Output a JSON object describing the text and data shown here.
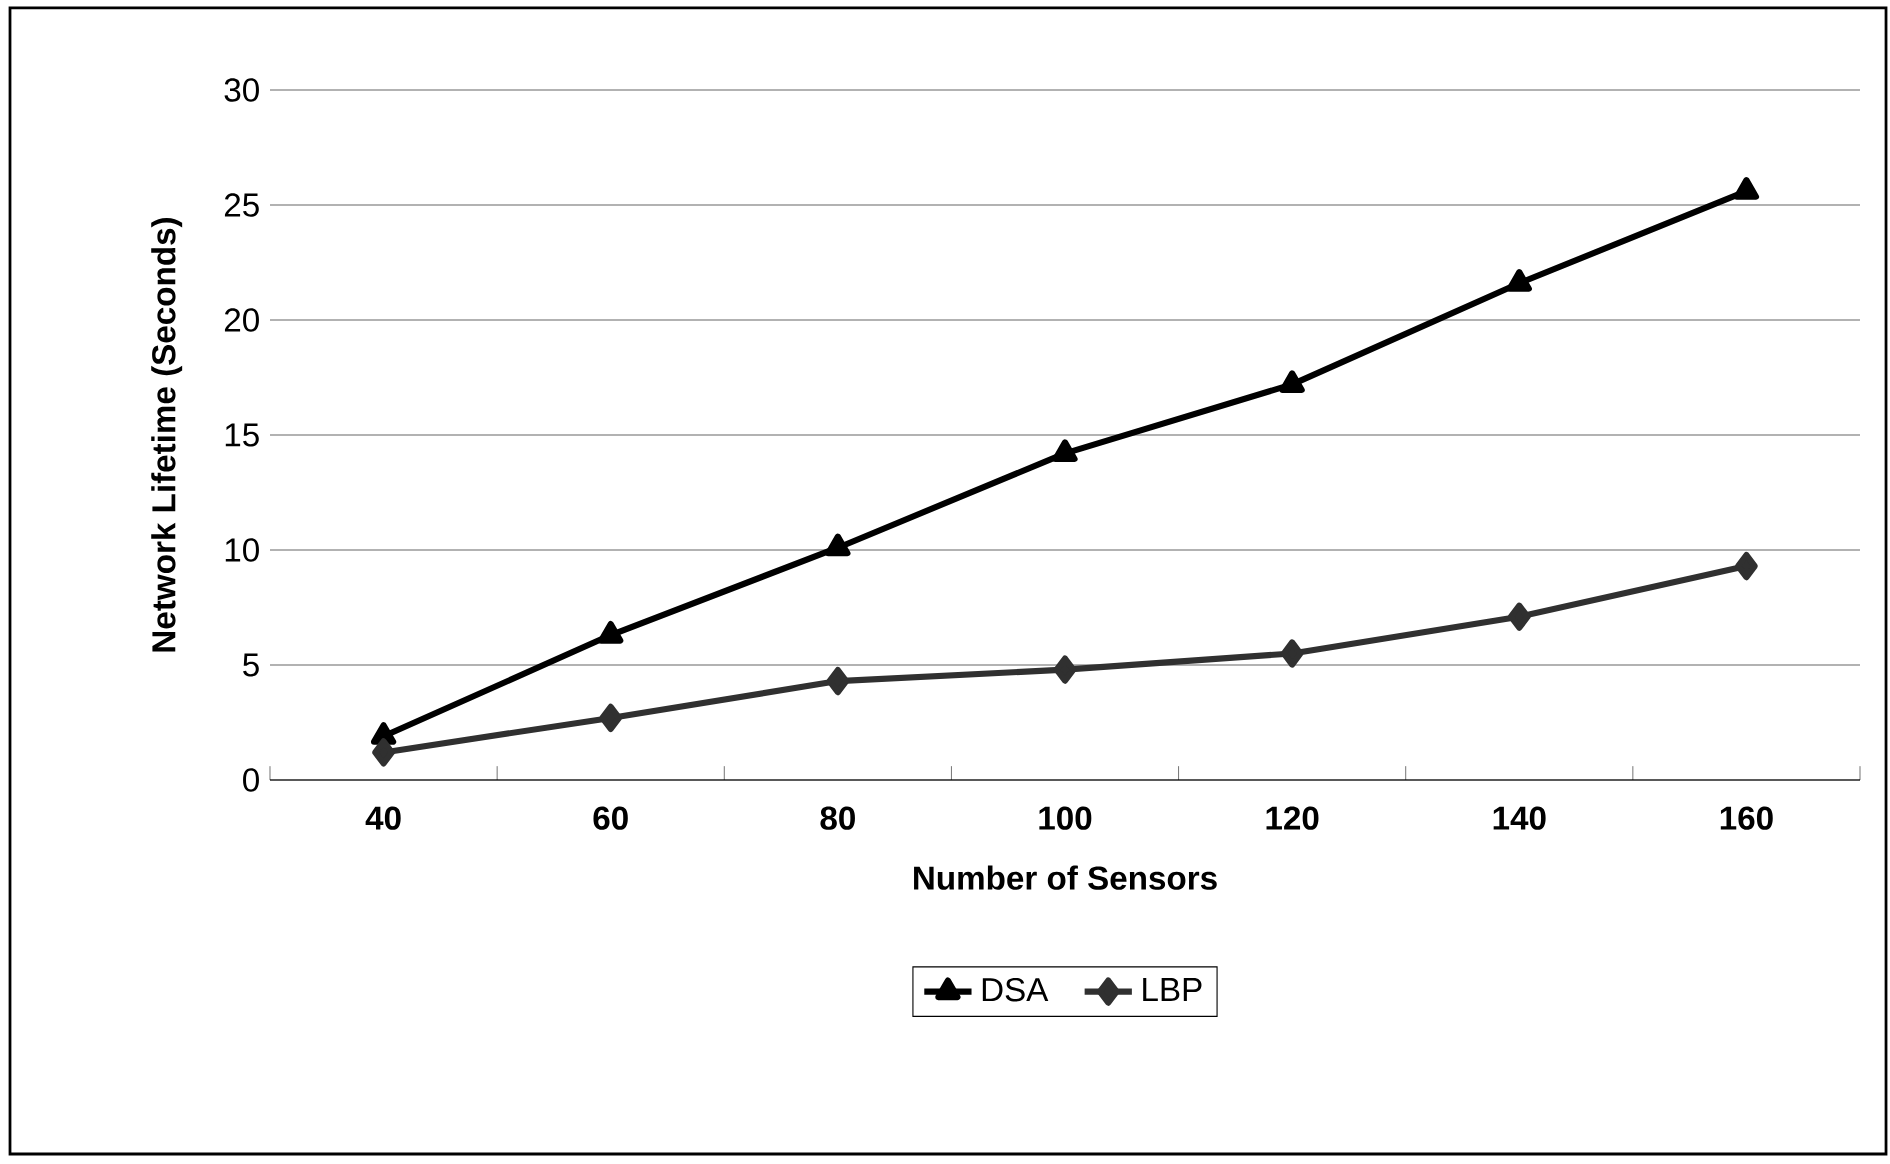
{
  "chart_data": {
    "type": "line",
    "xlabel": "Number of Sensors",
    "ylabel": "Network Lifetime (Seconds)",
    "categories": [
      "40",
      "60",
      "80",
      "100",
      "120",
      "140",
      "160"
    ],
    "series": [
      {
        "name": "DSA",
        "color": "#000000",
        "marker": "triangle",
        "values": [
          1.9,
          6.3,
          10.1,
          14.2,
          17.2,
          21.6,
          25.6
        ]
      },
      {
        "name": "LBP",
        "color": "#303030",
        "marker": "diamond",
        "values": [
          1.2,
          2.7,
          4.3,
          4.8,
          5.5,
          7.1,
          9.3
        ]
      }
    ],
    "ylim": [
      0,
      30
    ],
    "yticks": [
      0,
      5,
      10,
      15,
      20,
      25,
      30
    ],
    "grid": "y",
    "legend": "bottom",
    "line_style": "solid"
  }
}
